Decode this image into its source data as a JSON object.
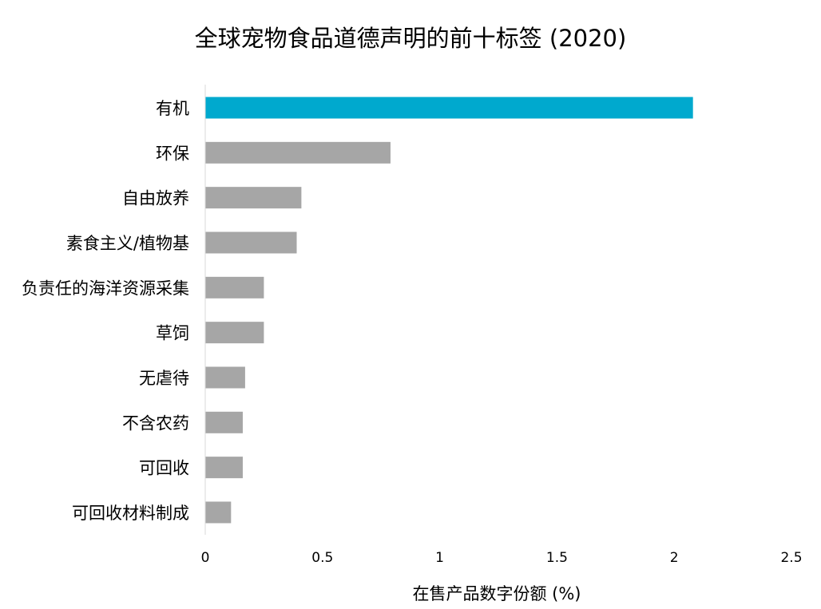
{
  "chart_data": {
    "type": "bar",
    "orientation": "horizontal",
    "title": "全球宠物食品道德声明的前十标签 (2020)",
    "xlabel": "在售产品数字份额 (%)",
    "ylabel": "",
    "categories": [
      "有机",
      "环保",
      "自由放养",
      "素食主义/植物基",
      "负责任的海洋资源采集",
      "草饲",
      "无虐待",
      "不含农药",
      "可回收",
      "可回收材料制成"
    ],
    "values": [
      2.08,
      0.79,
      0.41,
      0.39,
      0.25,
      0.25,
      0.17,
      0.16,
      0.16,
      0.11
    ],
    "xlim": [
      0,
      2.5
    ],
    "x_ticks": [
      "0",
      "0.5",
      "1",
      "1.5",
      "2",
      "2.5"
    ],
    "grid": false,
    "legend": "none",
    "colors": {
      "highlight": "#00a9ce",
      "default": "#a6a6a6",
      "axis": "#d9d9d9",
      "text": "#000000"
    },
    "highlight_index": 0
  }
}
